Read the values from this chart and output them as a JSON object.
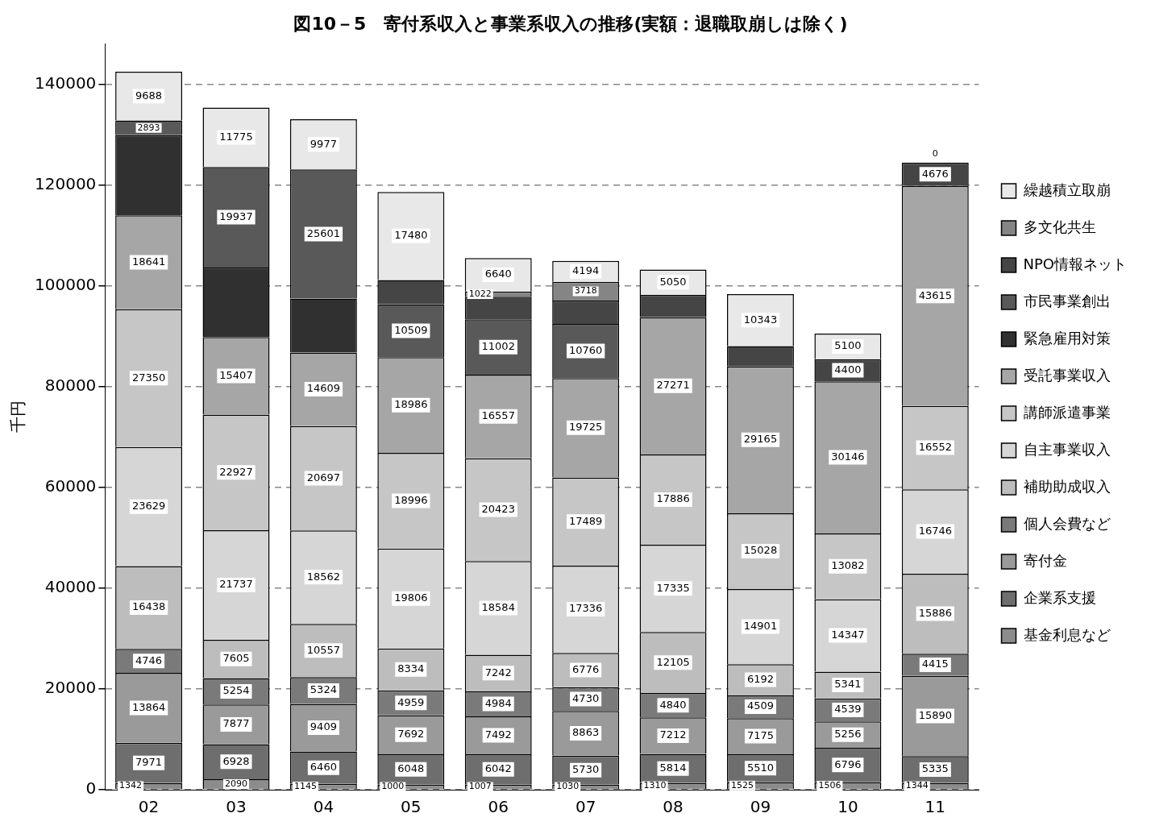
{
  "chart_data": {
    "type": "bar",
    "stacked": true,
    "title": "図10－5　寄付系収入と事業系収入の推移(実額：退職取崩しは除く)",
    "ylabel": "千円",
    "categories": [
      "02",
      "03",
      "04",
      "05",
      "06",
      "07",
      "08",
      "09",
      "10",
      "11"
    ],
    "ylim": [
      0,
      148000
    ],
    "yticks": [
      0,
      20000,
      40000,
      60000,
      80000,
      100000,
      120000,
      140000
    ],
    "grid": "y",
    "legend": "right",
    "series": [
      {
        "name": "基金利息など",
        "color": "#8c8c8c",
        "values": [
          1342,
          2090,
          1145,
          1000,
          1007,
          1030,
          1310,
          1525,
          1506,
          1344
        ],
        "value_labels": [
          "1342",
          "2090",
          "1145",
          "1000",
          "1007",
          "1030",
          "1310",
          "1525",
          "1506",
          "1344"
        ]
      },
      {
        "name": "企業系支援",
        "color": "#6e6e6e",
        "values": [
          7971,
          6928,
          6460,
          6048,
          6042,
          5730,
          5814,
          5510,
          6796,
          5335
        ],
        "value_labels": [
          "7971",
          "6928",
          "6460",
          "6048",
          "6042",
          "5730",
          "5814",
          "5510",
          "6796",
          "5335"
        ]
      },
      {
        "name": "寄付金",
        "color": "#9a9a9a",
        "values": [
          13864,
          7877,
          9409,
          7692,
          7492,
          8863,
          7212,
          7175,
          5256,
          15890
        ],
        "value_labels": [
          "13864",
          "7877",
          "9409",
          "7692",
          "7492",
          "8863",
          "7212",
          "7175",
          "5256",
          "15890"
        ]
      },
      {
        "name": "個人会費など",
        "color": "#7a7a7a",
        "values": [
          4746,
          5254,
          5324,
          4959,
          4984,
          4730,
          4840,
          4509,
          4539,
          4415
        ],
        "value_labels": [
          "4746",
          "5254",
          "5324",
          "4959",
          "4984",
          "4730",
          "4840",
          "4509",
          "4539",
          "4415"
        ]
      },
      {
        "name": "補助助成収入",
        "color": "#bdbdbd",
        "values": [
          16438,
          7605,
          10557,
          8334,
          7242,
          6776,
          12105,
          6192,
          5341,
          15886
        ],
        "value_labels": [
          "16438",
          "7605",
          "10557",
          "8334",
          "7242",
          "6776",
          "12105",
          "6192",
          "5341",
          "15886"
        ]
      },
      {
        "name": "自主事業収入",
        "color": "#d6d6d6",
        "values": [
          23629,
          21737,
          18562,
          19806,
          18584,
          17336,
          17335,
          14901,
          14347,
          16746
        ],
        "value_labels": [
          "23629",
          "21737",
          "18562",
          "19806",
          "18584",
          "17336",
          "17335",
          "14901",
          "14347",
          "16746"
        ]
      },
      {
        "name": "講師派遣事業",
        "color": "#c6c6c6",
        "values": [
          27350,
          22927,
          20697,
          18996,
          20423,
          17489,
          17886,
          15028,
          13082,
          16552
        ],
        "value_labels": [
          "27350",
          "22927",
          "20697",
          "18996",
          "20423",
          "17489",
          "17886",
          "15028",
          "13082",
          "16552"
        ]
      },
      {
        "name": "受託事業収入",
        "color": "#a6a6a6",
        "values": [
          18641,
          15407,
          14609,
          18986,
          16557,
          19725,
          27271,
          29165,
          30146,
          43615
        ],
        "value_labels": [
          "18641",
          "15407",
          "14609",
          "18986",
          "16557",
          "19725",
          "27271",
          "29165",
          "30146",
          "43615"
        ]
      },
      {
        "name": "緊急雇用対策",
        "color": "#303030",
        "values": [
          15900,
          13800,
          10700,
          null,
          null,
          null,
          null,
          null,
          null,
          null
        ],
        "value_labels": [
          null,
          null,
          null,
          null,
          null,
          null,
          null,
          null,
          null,
          null
        ]
      },
      {
        "name": "市民事業創出",
        "color": "#595959",
        "values": [
          2893,
          19937,
          25601,
          10509,
          11002,
          10760,
          null,
          null,
          null,
          null
        ],
        "value_labels": [
          "2893",
          "19937",
          "25601",
          "10509",
          "11002",
          "10760",
          null,
          null,
          null,
          null
        ]
      },
      {
        "name": "NPO情報ネット",
        "color": "#454545",
        "values": [
          null,
          null,
          null,
          4800,
          4500,
          4600,
          4400,
          4000,
          4400,
          4676
        ],
        "value_labels": [
          null,
          null,
          null,
          null,
          null,
          null,
          null,
          null,
          "4400",
          "4676"
        ]
      },
      {
        "name": "多文化共生",
        "color": "#858585",
        "values": [
          null,
          null,
          null,
          null,
          1022,
          3718,
          null,
          null,
          null,
          null
        ],
        "value_labels": [
          null,
          null,
          null,
          null,
          "1022",
          "3718",
          null,
          null,
          null,
          null
        ]
      },
      {
        "name": "繰越積立取崩",
        "color": "#e8e8e8",
        "values": [
          9688,
          11775,
          9977,
          17480,
          6640,
          4194,
          5050,
          10343,
          5100,
          0
        ],
        "value_labels": [
          "9688",
          "11775",
          "9977",
          "17480",
          "6640",
          "4194",
          "5050",
          "10343",
          "5100",
          "0"
        ]
      }
    ]
  }
}
